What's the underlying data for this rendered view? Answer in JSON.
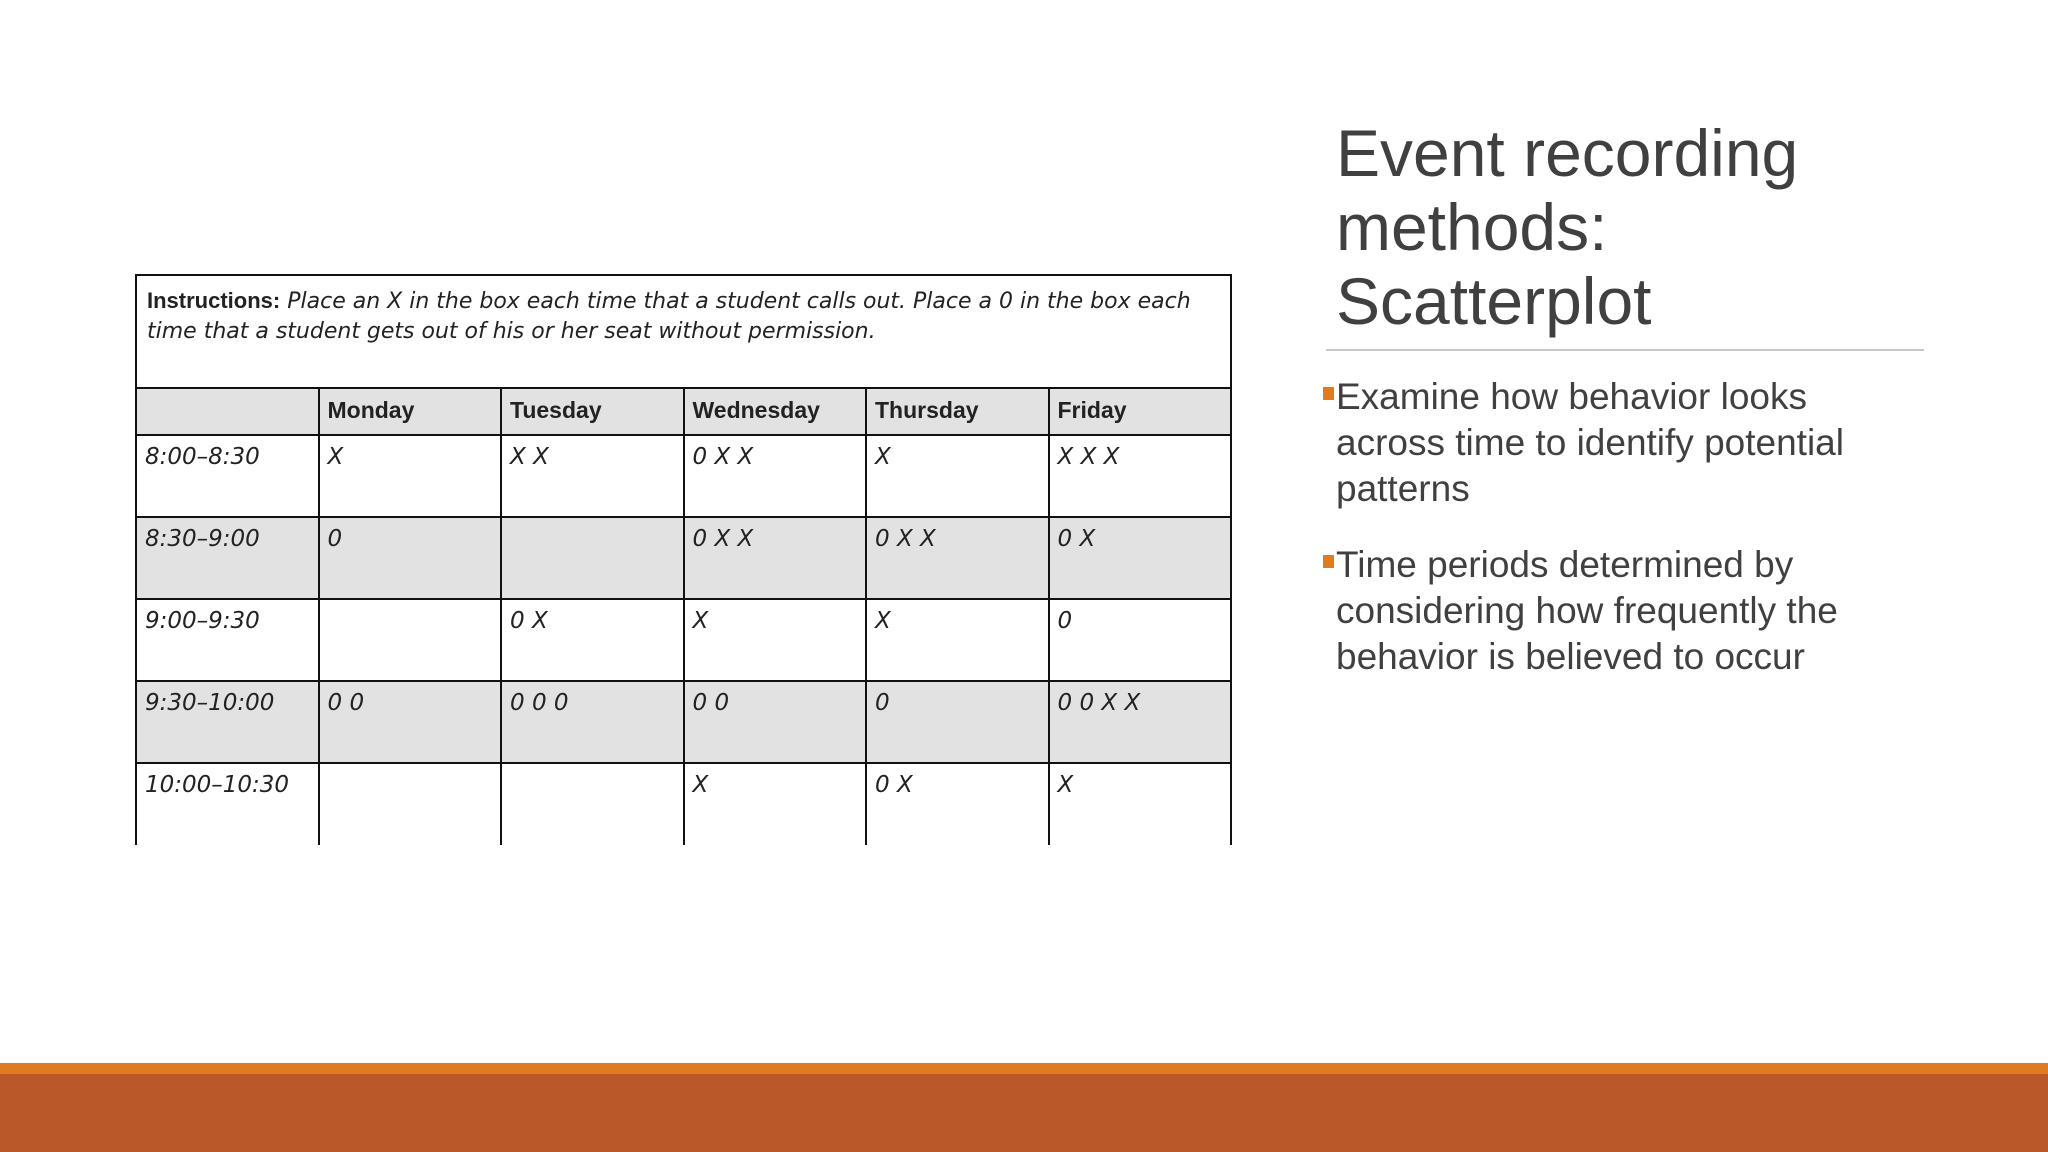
{
  "slide": {
    "title_lines": [
      "Event recording",
      "methods:",
      "Scatterplot"
    ],
    "bullets": [
      [
        "Examine how behavior looks",
        "across time to identify potential",
        "patterns"
      ],
      [
        "Time periods determined by",
        "considering how frequently the",
        "behavior is believed to occur"
      ]
    ],
    "table": {
      "instructions_label": "Instructions:",
      "instructions_text": "Place an X in the box each time that a student calls out. Place a 0 in the box each time that a student gets out of his or her seat without permission.",
      "header": [
        null,
        "Monday",
        "Tuesday",
        "Wednesday",
        "Thursday",
        "Friday"
      ],
      "rows": [
        [
          "8:00–8:30",
          "X",
          "X X",
          "0 X X",
          "X",
          "X X X"
        ],
        [
          "8:30–9:00",
          "0",
          null,
          "0 X X",
          "0 X X",
          "0 X"
        ],
        [
          "9:00–9:30",
          null,
          "0 X",
          "X",
          "X",
          "0"
        ],
        [
          "9:30–10:00",
          "0 0",
          "0 0 0",
          "0 0",
          "0",
          "0 0 X X"
        ],
        [
          "10:00–10:30",
          null,
          null,
          "X",
          "0 X",
          "X"
        ]
      ]
    }
  }
}
